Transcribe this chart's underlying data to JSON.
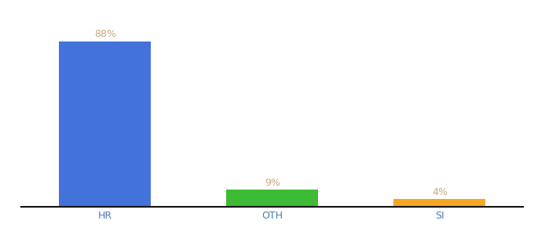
{
  "categories": [
    "HR",
    "OTH",
    "SI"
  ],
  "values": [
    88,
    9,
    4
  ],
  "bar_colors": [
    "#4472db",
    "#3dbb35",
    "#f5a623"
  ],
  "label_color": "#c8a882",
  "value_labels": [
    "88%",
    "9%",
    "4%"
  ],
  "background_color": "#ffffff",
  "ylim": [
    0,
    100
  ],
  "bar_width": 0.55,
  "xlabel_fontsize": 9,
  "label_fontsize": 9,
  "xlabel_color": "#4a7ab5",
  "x_positions": [
    0,
    1,
    2
  ],
  "xlim": [
    -0.5,
    2.5
  ]
}
